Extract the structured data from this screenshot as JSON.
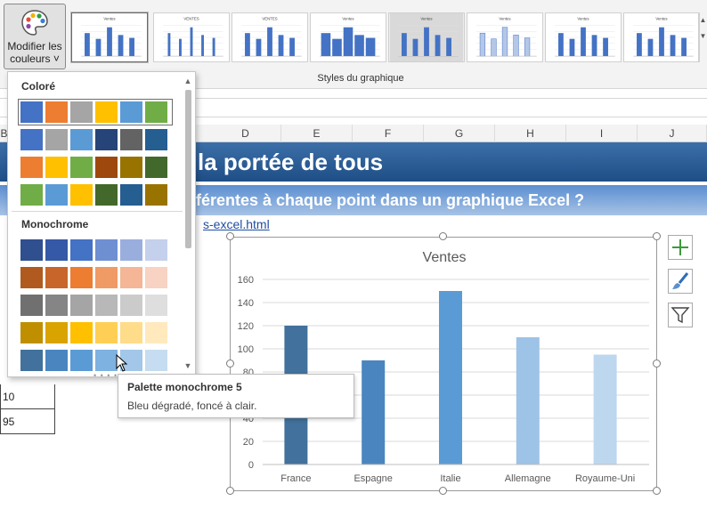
{
  "ribbon": {
    "colors_button_label": "Modifier les couleurs ˅",
    "group_label": "Styles du graphique",
    "scroll_up_icon": "chevron-up-icon",
    "scroll_down_icon": "chevron-down-icon",
    "style_thumbnails": [
      {
        "title": "Ventes"
      },
      {
        "title": "VENTES"
      },
      {
        "title": "VENTES"
      },
      {
        "title": "Ventes"
      },
      {
        "title": "Ventes"
      },
      {
        "title": "Ventes"
      },
      {
        "title": "Ventes"
      },
      {
        "title": "Ventes"
      }
    ]
  },
  "sheet": {
    "columns": [
      "B",
      "D",
      "E",
      "F",
      "G",
      "H",
      "I",
      "J"
    ],
    "title_fragment": "la portée de tous",
    "subtitle_fragment": "fférentes à chaque point dans un graphique Excel ?",
    "link_fragment": "s-excel.html",
    "cell_values": [
      "10",
      "95"
    ]
  },
  "dropdown": {
    "section_colore": "Coloré",
    "section_monochrome": "Monochrome",
    "colorful_palettes": [
      [
        "#4472c4",
        "#ed7d31",
        "#a5a5a5",
        "#ffc000",
        "#5b9bd5",
        "#70ad47"
      ],
      [
        "#4472c4",
        "#a5a5a5",
        "#5b9bd5",
        "#264478",
        "#636363",
        "#255e91"
      ],
      [
        "#ed7d31",
        "#ffc000",
        "#70ad47",
        "#9e480e",
        "#997300",
        "#43682b"
      ],
      [
        "#70ad47",
        "#5b9bd5",
        "#ffc000",
        "#43682b",
        "#255e91",
        "#997300"
      ]
    ],
    "monochrome_palettes": [
      [
        "#2f4f8f",
        "#3559a6",
        "#4472c4",
        "#6f8fd3",
        "#9aaede",
        "#c4d0ec"
      ],
      [
        "#b05a20",
        "#c8652a",
        "#ed7d31",
        "#f09a66",
        "#f4b697",
        "#f8d2c2"
      ],
      [
        "#707070",
        "#858585",
        "#a5a5a5",
        "#b8b8b8",
        "#cbcbcb",
        "#dedede"
      ],
      [
        "#bf8f00",
        "#d9a300",
        "#ffc000",
        "#ffcf55",
        "#ffdc8a",
        "#ffe9bd"
      ],
      [
        "#41719c",
        "#4a85c0",
        "#5b9bd5",
        "#7eb2e0",
        "#a2c7e8",
        "#c6dcf0"
      ]
    ]
  },
  "tooltip": {
    "title": "Palette monochrome 5",
    "description": "Bleu dégradé, foncé à clair."
  },
  "side_buttons": {
    "elements_icon": "plus-icon",
    "styles_icon": "paintbrush-icon",
    "filter_icon": "funnel-icon"
  },
  "chart_data": {
    "type": "bar",
    "title": "Ventes",
    "categories": [
      "France",
      "Espagne",
      "Italie",
      "Allemagne",
      "Royaume-Uni"
    ],
    "values": [
      120,
      90,
      150,
      110,
      95
    ],
    "bar_colors": [
      "#41719c",
      "#4a85c0",
      "#5b9bd5",
      "#9dc3e6",
      "#bdd7ee"
    ],
    "ylim": [
      0,
      160
    ],
    "yticks": [
      0,
      20,
      40,
      60,
      80,
      100,
      120,
      140,
      160
    ],
    "grid": true,
    "legend": "none",
    "xlabel": "",
    "ylabel": ""
  }
}
